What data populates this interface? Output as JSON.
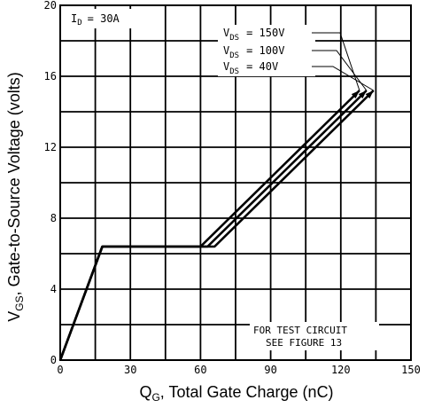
{
  "chart_data": {
    "type": "line",
    "xlabel": {
      "main": "Q",
      "sub": "G",
      "rest": ", Total Gate Charge (nC)"
    },
    "ylabel": {
      "main": "V",
      "sub": "GS",
      "rest": ", Gate-to-Source Voltage (volts)"
    },
    "xlim": [
      0,
      150
    ],
    "ylim": [
      0,
      20
    ],
    "x_ticks": [
      "0",
      "30",
      "60",
      "90",
      "120",
      "150"
    ],
    "y_ticks": [
      "0",
      "4",
      "8",
      "12",
      "16",
      "20"
    ],
    "grid": true,
    "annotation_id": {
      "main": "I",
      "sub": "D",
      "rest": "= 30A"
    },
    "annotation_circuit": [
      "FOR TEST CIRCUIT",
      "SEE FIGURE 13"
    ],
    "series": [
      {
        "name": "V_DS = 150V",
        "label_main": "V",
        "label_sub": "DS",
        "label_rest": "= 150V",
        "x": [
          0,
          18,
          60,
          128
        ],
        "y": [
          0,
          6.4,
          6.4,
          15.2
        ]
      },
      {
        "name": "V_DS = 100V",
        "label_main": "V",
        "label_sub": "DS",
        "label_rest": "= 100V",
        "x": [
          0,
          18,
          63,
          131
        ],
        "y": [
          0,
          6.4,
          6.4,
          15.2
        ]
      },
      {
        "name": "V_DS = 40V",
        "label_main": "V",
        "label_sub": "DS",
        "label_rest": "= 40V",
        "x": [
          0,
          18,
          66,
          134
        ],
        "y": [
          0,
          6.4,
          6.4,
          15.2
        ]
      }
    ]
  }
}
